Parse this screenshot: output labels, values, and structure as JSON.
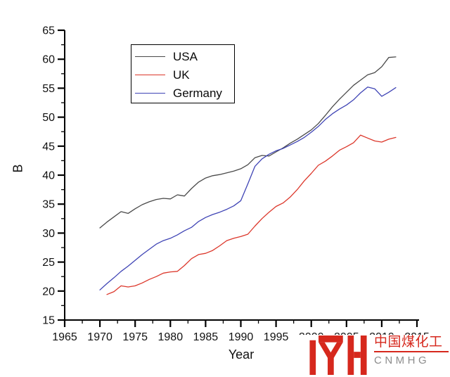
{
  "chart_data": {
    "type": "line",
    "title": "",
    "xlabel": "Year",
    "ylabel": "B",
    "xlim": [
      1965,
      2015
    ],
    "ylim": [
      15,
      65
    ],
    "x_ticks": [
      1965,
      1970,
      1975,
      1980,
      1985,
      1990,
      1995,
      2000,
      2005,
      2010,
      2015
    ],
    "y_ticks": [
      15,
      20,
      25,
      30,
      35,
      40,
      45,
      50,
      55,
      60,
      65
    ],
    "x_minor_step": 2.5,
    "y_minor_step": 2.5,
    "grid": false,
    "tick_direction": "out",
    "axis_color": "#000000",
    "tick_label_color": "#111111",
    "legend_position": "inside-top-left",
    "x_step": 1,
    "series": [
      {
        "name": "USA",
        "color": "#4a4a4a",
        "x_start": 1970,
        "values": [
          30.9,
          31.9,
          32.8,
          33.7,
          33.4,
          34.2,
          34.9,
          35.4,
          35.8,
          36.0,
          35.9,
          36.6,
          36.4,
          37.7,
          38.8,
          39.5,
          39.9,
          40.1,
          40.4,
          40.7,
          41.1,
          41.8,
          43.0,
          43.4,
          43.3,
          44.0,
          44.7,
          45.5,
          46.2,
          47.0,
          47.8,
          48.9,
          50.3,
          51.8,
          53.1,
          54.3,
          55.5,
          56.4,
          57.3,
          57.7,
          58.7,
          60.3,
          60.4
        ]
      },
      {
        "name": "UK",
        "color": "#dc372b",
        "x_start": 1971,
        "values": [
          19.4,
          19.9,
          20.9,
          20.7,
          20.9,
          21.4,
          22.0,
          22.5,
          23.1,
          23.3,
          23.4,
          24.4,
          25.6,
          26.3,
          26.5,
          27.0,
          27.8,
          28.7,
          29.1,
          29.4,
          29.8,
          31.2,
          32.5,
          33.6,
          34.6,
          35.2,
          36.2,
          37.5,
          39.0,
          40.3,
          41.7,
          42.4,
          43.3,
          44.3,
          44.9,
          45.6,
          46.9,
          46.4,
          45.9,
          45.7,
          46.2,
          46.5
        ]
      },
      {
        "name": "Germany",
        "color": "#3f44b5",
        "x_start": 1970,
        "values": [
          20.2,
          21.3,
          22.3,
          23.4,
          24.3,
          25.3,
          26.3,
          27.2,
          28.1,
          28.7,
          29.1,
          29.7,
          30.4,
          31.0,
          32.0,
          32.7,
          33.2,
          33.6,
          34.1,
          34.7,
          35.6,
          38.5,
          41.5,
          42.8,
          43.6,
          44.2,
          44.6,
          45.2,
          45.8,
          46.5,
          47.4,
          48.4,
          49.6,
          50.6,
          51.4,
          52.1,
          53.0,
          54.2,
          55.2,
          54.9,
          53.6,
          54.3,
          55.1
        ]
      }
    ]
  },
  "watermark": {
    "logo_monogram": "IYH",
    "line1": "中国煤化工",
    "line2": "CNMHG",
    "logo_color": "#d6281d",
    "divider_color": "#d6281d",
    "line2_color": "#8c8c8c"
  }
}
